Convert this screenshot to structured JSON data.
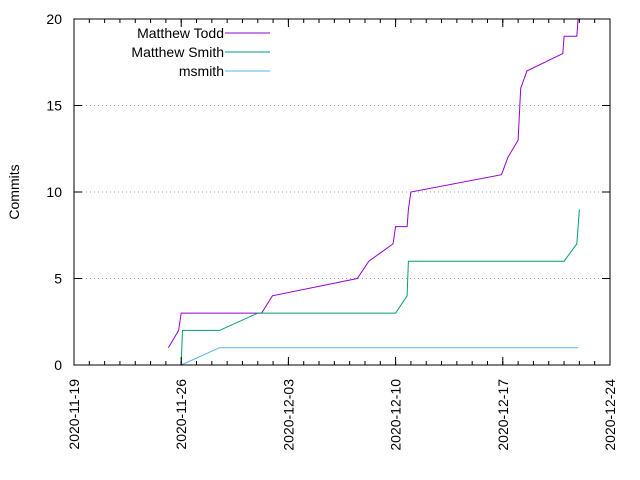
{
  "chart_data": {
    "type": "line",
    "title": "",
    "xlabel": "",
    "ylabel": "Commits",
    "xlim": [
      "2020-11-19",
      "2020-12-24"
    ],
    "ylim": [
      0,
      20
    ],
    "x_ticks": [
      "2020-11-19",
      "2020-11-26",
      "2020-12-03",
      "2020-12-10",
      "2020-12-17",
      "2020-12-24"
    ],
    "y_ticks": [
      0,
      5,
      10,
      15,
      20
    ],
    "grid": "horizontal dotted",
    "legend_position": "top-left",
    "series": [
      {
        "name": "Matthew Todd",
        "color": "#9400d3",
        "points": [
          [
            "2020-11-25T04:00",
            1
          ],
          [
            "2020-11-25T20:00",
            2
          ],
          [
            "2020-11-26T00:00",
            3
          ],
          [
            "2020-11-27T00:00",
            3
          ],
          [
            "2020-11-29T00:00",
            3
          ],
          [
            "2020-12-01T06:00",
            3
          ],
          [
            "2020-12-01T23:00",
            4
          ],
          [
            "2020-12-07T12:00",
            5
          ],
          [
            "2020-12-08T06:00",
            6
          ],
          [
            "2020-12-09T20:00",
            7
          ],
          [
            "2020-12-10T00:00",
            8
          ],
          [
            "2020-12-10T18:00",
            8
          ],
          [
            "2020-12-10T20:00",
            9
          ],
          [
            "2020-12-11T00:00",
            10
          ],
          [
            "2020-12-16T22:00",
            11
          ],
          [
            "2020-12-17T08:00",
            12
          ],
          [
            "2020-12-18T00:00",
            13
          ],
          [
            "2020-12-18T04:00",
            16
          ],
          [
            "2020-12-18T14:00",
            17
          ],
          [
            "2020-12-20T22:00",
            18
          ],
          [
            "2020-12-21T00:00",
            19
          ],
          [
            "2020-12-21T20:00",
            19
          ],
          [
            "2020-12-21T22:00",
            20
          ]
        ]
      },
      {
        "name": "Matthew Smith",
        "color": "#009e73",
        "points": [
          [
            "2020-11-26T00:00",
            0
          ],
          [
            "2020-11-26T02:00",
            2
          ],
          [
            "2020-11-28T12:00",
            2
          ],
          [
            "2020-12-01T00:00",
            3
          ],
          [
            "2020-12-10T00:00",
            3
          ],
          [
            "2020-12-10T18:00",
            4
          ],
          [
            "2020-12-10T20:00",
            6
          ],
          [
            "2020-12-21T00:00",
            6
          ],
          [
            "2020-12-21T20:00",
            7
          ],
          [
            "2020-12-22T00:00",
            9
          ]
        ]
      },
      {
        "name": "msmith",
        "color": "#56b4e9",
        "points": [
          [
            "2020-11-26T00:00",
            0
          ],
          [
            "2020-11-28T12:00",
            1
          ],
          [
            "2020-12-21T22:00",
            1
          ]
        ]
      }
    ]
  }
}
